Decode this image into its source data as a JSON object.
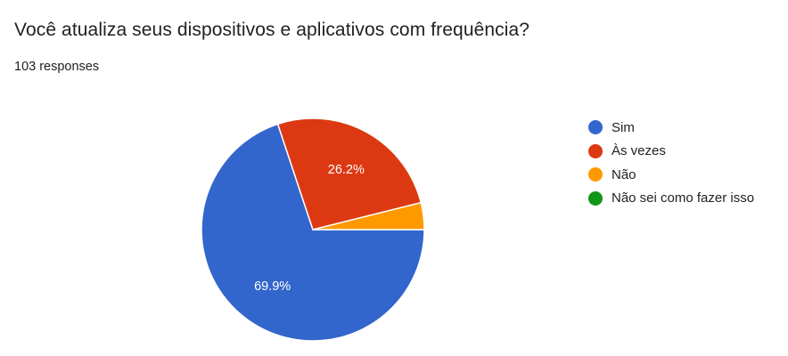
{
  "question": {
    "title": "Você atualiza seus dispositivos e aplicativos com frequência?",
    "responses": "103 responses"
  },
  "chart_data": {
    "type": "pie",
    "categories": [
      "Sim",
      "Às vezes",
      "Não",
      "Não sei como fazer isso"
    ],
    "values": [
      69.9,
      26.2,
      3.9,
      0
    ],
    "colors": [
      "#3366cc",
      "#dc3912",
      "#ff9900",
      "#109618"
    ],
    "data_labels": [
      "69.9%",
      "26.2%",
      "",
      ""
    ],
    "legend_position": "right"
  }
}
